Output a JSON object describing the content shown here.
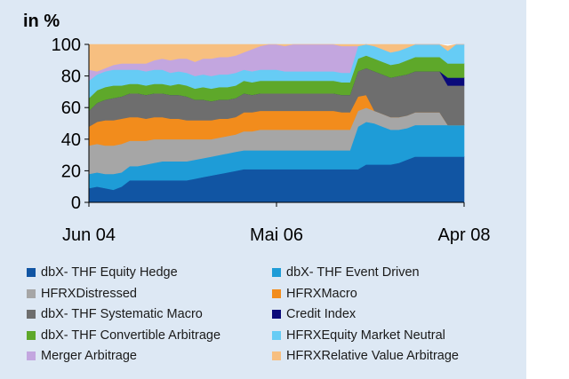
{
  "chart_data": {
    "type": "area",
    "stacked": true,
    "ylabel": "in %",
    "ylim": [
      0,
      100
    ],
    "yticks": [
      0,
      20,
      40,
      60,
      80,
      100
    ],
    "x_tick_labels": [
      {
        "label": "Jun 04",
        "x": 0
      },
      {
        "label": "Mai 06",
        "x": 23
      },
      {
        "label": "Apr 08",
        "x": 46
      }
    ],
    "x": [
      0,
      1,
      2,
      3,
      4,
      5,
      6,
      7,
      8,
      9,
      10,
      11,
      12,
      13,
      14,
      15,
      16,
      17,
      18,
      19,
      20,
      21,
      22,
      23,
      24,
      25,
      26,
      27,
      28,
      29,
      30,
      31,
      32,
      33,
      34,
      35,
      36,
      37,
      38,
      39,
      40,
      41,
      42,
      43,
      44,
      45,
      46
    ],
    "series": [
      {
        "name": "dbX- THF Equity Hedge",
        "color": "#1155a3",
        "values": [
          9,
          10,
          9,
          8,
          10,
          14,
          14,
          14,
          14,
          14,
          14,
          14,
          14,
          15,
          16,
          17,
          18,
          19,
          20,
          21,
          21,
          21,
          21,
          21,
          21,
          21,
          21,
          21,
          21,
          21,
          21,
          21,
          21,
          21,
          24,
          24,
          24,
          24,
          25,
          27,
          29,
          29,
          29,
          29,
          29,
          29,
          29
        ]
      },
      {
        "name": "dbX- THF Event Driven",
        "color": "#1e9cd7",
        "values": [
          9,
          9,
          9,
          10,
          9,
          9,
          9,
          10,
          11,
          12,
          12,
          12,
          12,
          12,
          12,
          12,
          12,
          12,
          12,
          12,
          12,
          12,
          12,
          12,
          12,
          12,
          12,
          12,
          12,
          12,
          12,
          12,
          12,
          27,
          27,
          26,
          24,
          22,
          21,
          20,
          20,
          20,
          20,
          20,
          20,
          20,
          20
        ]
      },
      {
        "name": "HFRXDistressed",
        "color": "#a6a6a6",
        "values": [
          18,
          18,
          18,
          18,
          18,
          16,
          16,
          15,
          15,
          14,
          14,
          14,
          14,
          13,
          12,
          11,
          11,
          11,
          11,
          12,
          12,
          13,
          13,
          13,
          13,
          13,
          13,
          13,
          13,
          13,
          13,
          13,
          13,
          10,
          9,
          8,
          8,
          8,
          8,
          8,
          8,
          8,
          8,
          8,
          0,
          0,
          0
        ]
      },
      {
        "name": "HFRXMacro",
        "color": "#f28c1c",
        "values": [
          12,
          14,
          16,
          16,
          16,
          15,
          15,
          14,
          14,
          14,
          13,
          13,
          12,
          12,
          12,
          12,
          12,
          11,
          11,
          12,
          12,
          12,
          12,
          12,
          12,
          12,
          12,
          12,
          12,
          12,
          12,
          11,
          11,
          9,
          8,
          0,
          0,
          0,
          0,
          0,
          0,
          0,
          0,
          0,
          0,
          0,
          0
        ]
      },
      {
        "name": "dbX- THF Systematic Macro",
        "color": "#6e6e6e",
        "values": [
          10,
          12,
          13,
          14,
          14,
          15,
          15,
          15,
          15,
          15,
          15,
          15,
          15,
          13,
          13,
          12,
          12,
          12,
          12,
          12,
          11,
          11,
          11,
          11,
          11,
          11,
          11,
          11,
          11,
          11,
          11,
          11,
          11,
          16,
          17,
          25,
          25,
          25,
          26,
          26,
          26,
          26,
          26,
          26,
          25,
          25,
          25
        ]
      },
      {
        "name": "Credit Index",
        "color": "#0a0a7a",
        "values": [
          0,
          0,
          0,
          0,
          0,
          0,
          0,
          0,
          0,
          0,
          0,
          0,
          0,
          0,
          0,
          0,
          0,
          0,
          0,
          0,
          0,
          0,
          0,
          0,
          0,
          0,
          0,
          0,
          0,
          0,
          0,
          0,
          0,
          0,
          0,
          0,
          0,
          0,
          0,
          0,
          0,
          0,
          0,
          0,
          5,
          5,
          5
        ]
      },
      {
        "name": "dbX- THF Convertible Arbitrage",
        "color": "#5ea82a",
        "values": [
          8,
          8,
          8,
          8,
          7,
          6,
          6,
          6,
          6,
          6,
          6,
          7,
          7,
          7,
          8,
          8,
          8,
          8,
          8,
          8,
          8,
          8,
          8,
          8,
          8,
          8,
          8,
          8,
          8,
          8,
          8,
          8,
          8,
          8,
          8,
          8,
          8,
          8,
          8,
          9,
          9,
          9,
          9,
          9,
          9,
          9,
          9
        ]
      },
      {
        "name": "HFRXEquity Market Neutral",
        "color": "#66ccf5",
        "values": [
          11,
          10,
          10,
          10,
          10,
          9,
          9,
          9,
          9,
          9,
          8,
          8,
          8,
          8,
          8,
          8,
          8,
          8,
          8,
          7,
          7,
          7,
          7,
          7,
          6,
          6,
          6,
          6,
          6,
          6,
          6,
          6,
          6,
          8,
          8,
          8,
          8,
          8,
          8,
          8,
          8,
          8,
          8,
          8,
          8,
          12,
          12
        ]
      },
      {
        "name": "Merger Arbitrage",
        "color": "#c3a6df",
        "values": [
          7,
          2,
          2,
          3,
          4,
          4,
          4,
          5,
          6,
          7,
          8,
          8,
          9,
          9,
          10,
          11,
          11,
          11,
          11,
          11,
          14,
          15,
          16,
          16,
          16,
          17,
          17,
          17,
          17,
          17,
          17,
          17,
          17,
          0,
          0,
          0,
          0,
          0,
          0,
          0,
          0,
          0,
          0,
          0,
          0,
          0,
          0
        ]
      },
      {
        "name": "HFRXRelative Value Arbitrage",
        "color": "#f7bf80",
        "values": [
          16,
          17,
          15,
          13,
          12,
          12,
          12,
          12,
          10,
          9,
          10,
          10,
          9,
          11,
          9,
          9,
          8,
          8,
          7,
          5,
          3,
          2,
          2,
          2,
          5,
          4,
          4,
          4,
          4,
          4,
          4,
          4,
          4,
          4,
          4,
          5,
          5,
          5,
          4,
          2,
          0,
          0,
          0,
          0,
          3,
          0,
          0
        ]
      }
    ]
  }
}
